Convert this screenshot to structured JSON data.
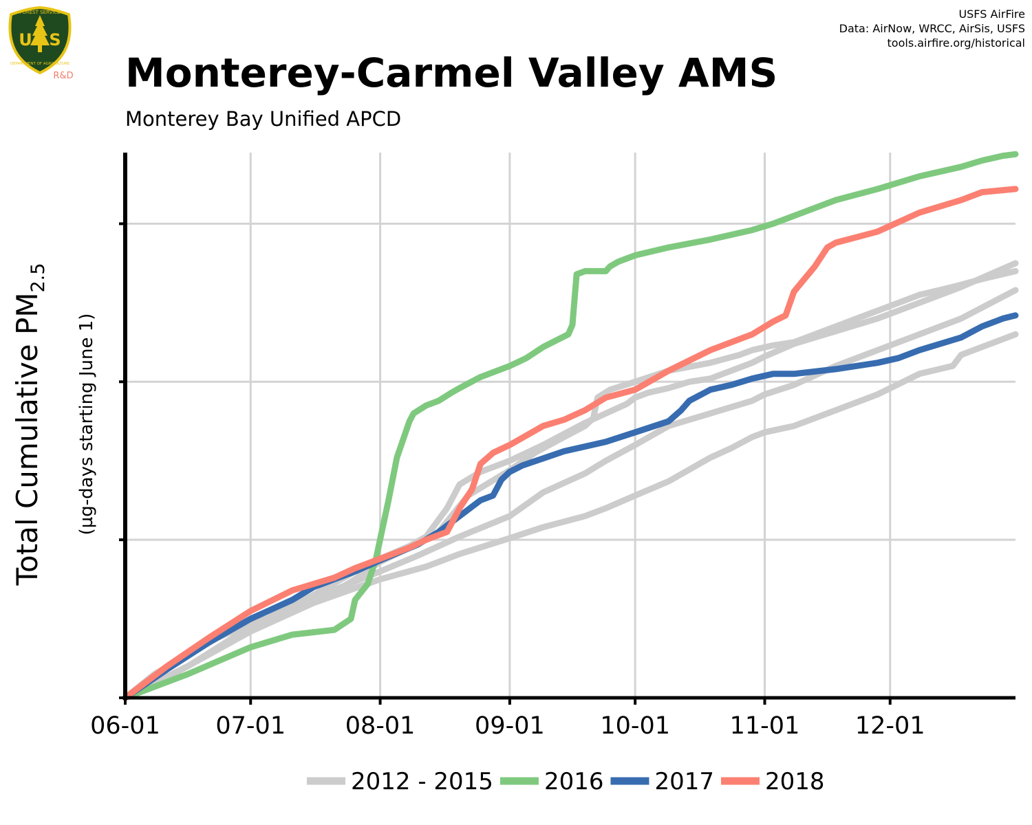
{
  "header": {
    "title": "Monterey-Carmel Valley AMS",
    "subtitle": "Monterey Bay Unified APCD",
    "credits": [
      "USFS AirFire",
      "Data: AirNow, WRCC, AirSis, USFS",
      "tools.airfire.org/historical"
    ]
  },
  "logo": {
    "text_top": "FOREST SERVICE",
    "text_mid": "U S",
    "text_bottom": "DEPARTMENT OF AGRICULTURE",
    "tag": "R&D",
    "icon": "usfs-shield-logo-icon",
    "colors": {
      "shield": "#1f4a20",
      "border": "#e8c416",
      "tag": "#f07f6a"
    }
  },
  "chart_data": {
    "type": "line",
    "title": "Monterey-Carmel Valley AMS",
    "subtitle": "Monterey Bay Unified APCD",
    "ylabel": "Total Cumulative PM",
    "ylabel_subscript": "2.5",
    "ylabel_note": "(µg-days starting June 1)",
    "xlabel": "",
    "x_tick_labels": [
      "06-01",
      "07-01",
      "08-01",
      "09-01",
      "10-01",
      "11-01",
      "12-01"
    ],
    "x_tick_days": [
      0,
      30,
      61,
      92,
      122,
      153,
      183
    ],
    "xlim_days": [
      0,
      213
    ],
    "y_tick_labels_shown": false,
    "ylim": [
      0,
      3.45
    ],
    "y_gridlines": [
      1,
      2,
      3
    ],
    "grid": true,
    "legend_position": "bottom",
    "colors": {
      "historical": "#cccccc",
      "2016": "#7fc97f",
      "2017": "#386cb0",
      "2018": "#fb8072"
    },
    "legend": [
      "2012 - 2015",
      "2016",
      "2017",
      "2018"
    ],
    "series": [
      {
        "name": "2012 - 2015",
        "group": "historical",
        "x": [
          0,
          7,
          15,
          22,
          30,
          40,
          45,
          50,
          55,
          61,
          68,
          72,
          75,
          82,
          92,
          98,
          105,
          110,
          112,
          113,
          116,
          122,
          130,
          140,
          147,
          150,
          155,
          160,
          165,
          170,
          180,
          190,
          198,
          205,
          213
        ],
        "y": [
          0,
          0.15,
          0.27,
          0.38,
          0.47,
          0.55,
          0.62,
          0.67,
          0.75,
          0.86,
          0.95,
          1.0,
          1.05,
          1.28,
          1.44,
          1.55,
          1.65,
          1.72,
          1.77,
          1.9,
          1.95,
          2.0,
          2.07,
          2.12,
          2.17,
          2.2,
          2.23,
          2.25,
          2.3,
          2.35,
          2.45,
          2.55,
          2.6,
          2.65,
          2.7
        ]
      },
      {
        "name": "2012 - 2015",
        "group": "historical",
        "x": [
          0,
          15,
          30,
          45,
          55,
          61,
          68,
          72,
          77,
          80,
          85,
          92,
          100,
          105,
          110,
          115,
          120,
          122,
          125,
          130,
          135,
          140,
          145,
          150,
          153,
          160,
          170,
          180,
          190,
          200,
          213
        ],
        "y": [
          0,
          0.2,
          0.45,
          0.65,
          0.8,
          0.88,
          0.96,
          1.02,
          1.2,
          1.35,
          1.43,
          1.5,
          1.6,
          1.67,
          1.74,
          1.8,
          1.86,
          1.9,
          1.93,
          1.96,
          2.0,
          2.02,
          2.07,
          2.12,
          2.16,
          2.24,
          2.32,
          2.4,
          2.5,
          2.6,
          2.75
        ]
      },
      {
        "name": "2012 - 2015",
        "group": "historical",
        "x": [
          0,
          15,
          30,
          45,
          61,
          70,
          80,
          92,
          100,
          110,
          115,
          122,
          130,
          140,
          150,
          153,
          160,
          170,
          180,
          190,
          200,
          213
        ],
        "y": [
          0,
          0.2,
          0.43,
          0.63,
          0.8,
          0.9,
          1.02,
          1.15,
          1.3,
          1.42,
          1.5,
          1.6,
          1.72,
          1.8,
          1.88,
          1.92,
          1.98,
          2.1,
          2.2,
          2.3,
          2.4,
          2.58
        ]
      },
      {
        "name": "2012 - 2015",
        "group": "historical",
        "x": [
          0,
          15,
          30,
          45,
          61,
          72,
          80,
          92,
          100,
          110,
          115,
          122,
          130,
          140,
          145,
          150,
          153,
          160,
          170,
          180,
          190,
          198,
          200,
          205,
          213
        ],
        "y": [
          0,
          0.2,
          0.42,
          0.6,
          0.75,
          0.83,
          0.91,
          1.01,
          1.08,
          1.15,
          1.2,
          1.28,
          1.37,
          1.52,
          1.58,
          1.65,
          1.68,
          1.72,
          1.82,
          1.92,
          2.05,
          2.1,
          2.17,
          2.22,
          2.3
        ]
      },
      {
        "name": "2016",
        "group": "2016",
        "x": [
          0,
          15,
          30,
          40,
          50,
          54,
          55,
          58,
          60,
          63,
          65,
          68,
          69,
          72,
          75,
          78,
          80,
          85,
          92,
          96,
          100,
          106,
          107,
          108,
          110,
          115,
          116,
          118,
          120,
          122,
          130,
          140,
          150,
          155,
          160,
          170,
          180,
          190,
          200,
          205,
          210,
          213
        ],
        "y": [
          0,
          0.15,
          0.32,
          0.4,
          0.43,
          0.5,
          0.62,
          0.72,
          0.88,
          1.25,
          1.52,
          1.75,
          1.8,
          1.85,
          1.88,
          1.93,
          1.96,
          2.03,
          2.1,
          2.15,
          2.22,
          2.3,
          2.36,
          2.68,
          2.7,
          2.7,
          2.73,
          2.76,
          2.78,
          2.8,
          2.85,
          2.9,
          2.96,
          3.0,
          3.05,
          3.15,
          3.22,
          3.3,
          3.36,
          3.4,
          3.43,
          3.44
        ]
      },
      {
        "name": "2017",
        "group": "2017",
        "x": [
          0,
          10,
          20,
          30,
          40,
          45,
          50,
          55,
          61,
          70,
          75,
          80,
          85,
          88,
          90,
          92,
          95,
          105,
          110,
          115,
          122,
          130,
          133,
          135,
          140,
          145,
          150,
          155,
          160,
          170,
          180,
          185,
          190,
          200,
          205,
          210,
          213
        ],
        "y": [
          0,
          0.18,
          0.35,
          0.5,
          0.62,
          0.7,
          0.75,
          0.8,
          0.87,
          0.97,
          1.05,
          1.15,
          1.25,
          1.28,
          1.38,
          1.43,
          1.47,
          1.56,
          1.59,
          1.62,
          1.68,
          1.75,
          1.82,
          1.88,
          1.95,
          1.98,
          2.02,
          2.05,
          2.05,
          2.08,
          2.12,
          2.15,
          2.2,
          2.28,
          2.35,
          2.4,
          2.42
        ]
      },
      {
        "name": "2018",
        "group": "2018",
        "x": [
          0,
          10,
          20,
          30,
          40,
          45,
          50,
          55,
          61,
          68,
          72,
          77,
          80,
          83,
          85,
          88,
          92,
          100,
          105,
          110,
          115,
          122,
          130,
          140,
          150,
          155,
          158,
          160,
          165,
          168,
          170,
          180,
          190,
          200,
          205,
          213
        ],
        "y": [
          0,
          0.2,
          0.38,
          0.55,
          0.68,
          0.72,
          0.76,
          0.82,
          0.88,
          0.95,
          1.0,
          1.05,
          1.2,
          1.32,
          1.48,
          1.55,
          1.6,
          1.72,
          1.76,
          1.82,
          1.9,
          1.95,
          2.07,
          2.2,
          2.3,
          2.38,
          2.42,
          2.57,
          2.73,
          2.85,
          2.88,
          2.95,
          3.07,
          3.15,
          3.2,
          3.22
        ]
      }
    ]
  }
}
